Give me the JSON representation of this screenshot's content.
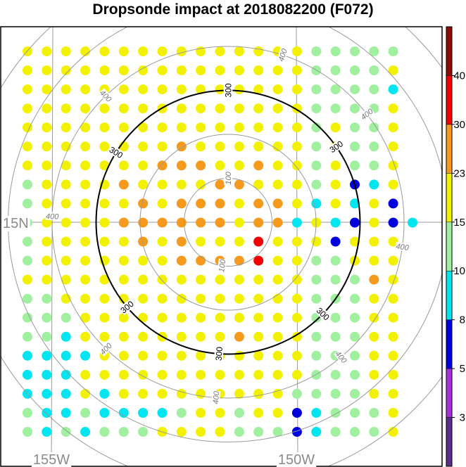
{
  "chart_data": {
    "type": "scatter",
    "title": "Dropsonde impact at 2018082200 (F072)",
    "grid_labels": {
      "latitude": "15N",
      "longitude_left": "155W",
      "longitude_right": "150W"
    },
    "range_rings": [
      {
        "value": 100,
        "label": "100",
        "emphasis": false
      },
      {
        "value": 200,
        "label": "",
        "emphasis": false
      },
      {
        "value": 300,
        "label": "300",
        "emphasis": true
      },
      {
        "value": 400,
        "label": "400",
        "emphasis": false
      },
      {
        "value": 500,
        "label": "",
        "emphasis": false
      },
      {
        "value": 600,
        "label": "",
        "emphasis": false
      }
    ],
    "colorbar": {
      "labels": [
        "3",
        "5",
        "8",
        "10",
        "15",
        "23",
        "30",
        "40"
      ],
      "colors": [
        "#5a2d8c",
        "#a630dc",
        "#0000dc",
        "#00e6f0",
        "#a0f0a0",
        "#f2f200",
        "#f59a1c",
        "#f20000",
        "#8c0a00"
      ],
      "level_names": [
        "<3",
        "3-5",
        "5-8",
        "8-10",
        "10-15",
        "15-23",
        "23-30",
        "30-40",
        ">40"
      ]
    },
    "grid": {
      "columns": 21,
      "rows": 21,
      "cell_codes": [
        "YYYYYYYYYYYYYYYGGGGGM",
        "YYYYYYYYYYYYYYYGGGGYM",
        "YYYYYYYYYYYYYYYGGGGCM",
        "YYYYYYYYYYYYYYYGGGGYM",
        "YYYYYYYYYYYYYYYGYGGYM",
        "YYYYYYYYOYYYYYYGYGGYM",
        "YYYYYYYOOOYYOYYGYGGYM",
        "GYYYYOYYYYOOYYYGYBCYM",
        "GYYYYYOYOOOYOOYCYCYBM",
        "GYYYYOOOOOOYOOCYCBYBC",
        "GYYYYYOYOYYYRYYYBYYYM",
        "GYYYYYYYOOOORYYGGYYYM",
        "YYYYYYYYYYYYYYYGGGOYM",
        "GGYYYYYYYYYYYYYGGGYYM",
        "GGGYYYYYYYYYYYYGGGYYM",
        "GGCYYYYYYYYOYYYGGGYYM",
        "CCCCYYYYYYYYYYYGGGYYM",
        "CCCYYYYYYYYYYYYGGGYYM",
        "CCCYCYYYYYYYYYGGGGYYM",
        "GCCGCCCCGYYGYYBCGGGYM",
        "GCGCGGGYYYYGGGBCGGGYM"
      ]
    }
  }
}
